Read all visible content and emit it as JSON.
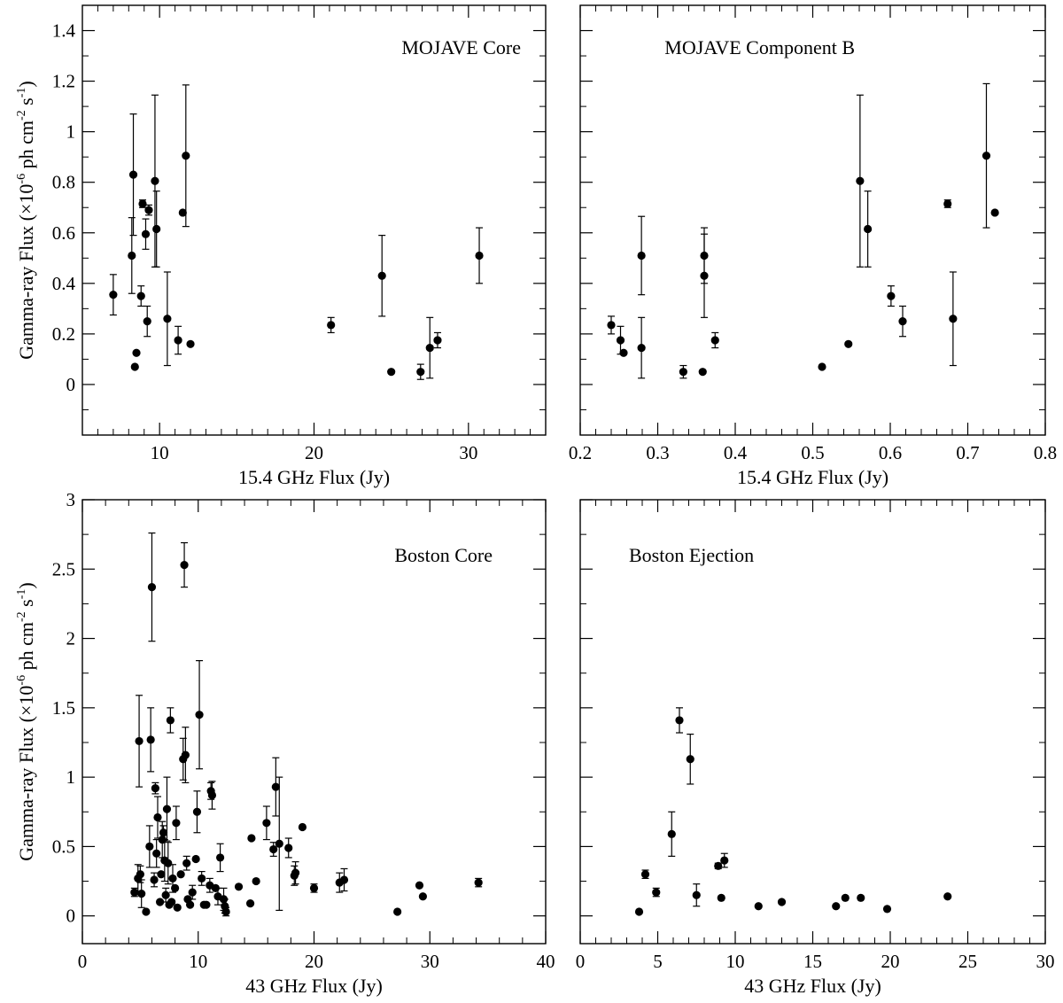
{
  "figure": {
    "y_axis_label": {
      "base": "Gamma-ray Flux (×10",
      "exp1": "-6",
      "mid": " ph cm",
      "exp2": "-2",
      "space": " s",
      "exp3": "-1",
      "end": ")"
    }
  },
  "chart_data": [
    {
      "type": "scatter",
      "title": "MOJAVE Core",
      "xlabel": "15.4 GHz Flux (Jy)",
      "ylabel": "Gamma-ray Flux (×10^-6 ph cm^-2 s^-1)",
      "xlim": [
        5,
        35
      ],
      "ylim": [
        -0.2,
        1.5
      ],
      "xticks": [
        10,
        20,
        30
      ],
      "xtick_labels": [
        "10",
        "20",
        "30"
      ],
      "xminor": 1,
      "yticks": [
        0,
        0.2,
        0.4,
        0.6,
        0.8,
        1,
        1.2,
        1.4
      ],
      "ytick_labels": [
        "0",
        "0.2",
        "0.4",
        "0.6",
        "0.8",
        "1",
        "1.2",
        "1.4"
      ],
      "yminor": 0.1,
      "show_ytick_labels": true,
      "points": [
        {
          "x": 7.0,
          "y": 0.355,
          "err": 0.08
        },
        {
          "x": 8.2,
          "y": 0.51,
          "err": 0.15
        },
        {
          "x": 8.3,
          "y": 0.83,
          "err": 0.24
        },
        {
          "x": 8.4,
          "y": 0.07,
          "err": 0
        },
        {
          "x": 8.5,
          "y": 0.125,
          "err": 0
        },
        {
          "x": 8.8,
          "y": 0.35,
          "err": 0.04
        },
        {
          "x": 8.9,
          "y": 0.715,
          "err": 0.015
        },
        {
          "x": 9.1,
          "y": 0.595,
          "err": 0.06
        },
        {
          "x": 9.2,
          "y": 0.25,
          "err": 0.06
        },
        {
          "x": 9.3,
          "y": 0.69,
          "err": 0.02
        },
        {
          "x": 9.7,
          "y": 0.805,
          "err": 0.34
        },
        {
          "x": 9.8,
          "y": 0.615,
          "err": 0.15
        },
        {
          "x": 10.5,
          "y": 0.26,
          "err": 0.185
        },
        {
          "x": 11.2,
          "y": 0.175,
          "err": 0.055
        },
        {
          "x": 11.5,
          "y": 0.68,
          "err": 0
        },
        {
          "x": 11.7,
          "y": 0.905,
          "err": 0.28
        },
        {
          "x": 12.0,
          "y": 0.16,
          "err": 0
        },
        {
          "x": 21.1,
          "y": 0.235,
          "err": 0.03
        },
        {
          "x": 24.4,
          "y": 0.43,
          "err": 0.16
        },
        {
          "x": 25.0,
          "y": 0.05,
          "err": 0
        },
        {
          "x": 26.9,
          "y": 0.05,
          "err": 0.03
        },
        {
          "x": 27.5,
          "y": 0.145,
          "err": 0.12
        },
        {
          "x": 28.0,
          "y": 0.175,
          "err": 0.03
        },
        {
          "x": 30.7,
          "y": 0.51,
          "err": 0.11
        }
      ]
    },
    {
      "type": "scatter",
      "title": "MOJAVE Component B",
      "xlabel": "15.4 GHz Flux (Jy)",
      "ylabel": "",
      "xlim": [
        0.2,
        0.8
      ],
      "ylim": [
        -0.2,
        1.5
      ],
      "xticks": [
        0.2,
        0.3,
        0.4,
        0.5,
        0.6,
        0.7,
        0.8
      ],
      "xtick_labels": [
        "0.2",
        "0.3",
        "0.4",
        "0.5",
        "0.6",
        "0.7",
        "0.8"
      ],
      "xminor": 0.02,
      "yticks": [
        0,
        0.2,
        0.4,
        0.6,
        0.8,
        1,
        1.2,
        1.4
      ],
      "ytick_labels": [],
      "yminor": 0.1,
      "show_ytick_labels": false,
      "points": [
        {
          "x": 0.24,
          "y": 0.235,
          "err": 0.035
        },
        {
          "x": 0.252,
          "y": 0.175,
          "err": 0.055
        },
        {
          "x": 0.256,
          "y": 0.125,
          "err": 0
        },
        {
          "x": 0.279,
          "y": 0.51,
          "err": 0.155
        },
        {
          "x": 0.279,
          "y": 0.145,
          "err": 0.12
        },
        {
          "x": 0.333,
          "y": 0.05,
          "err": 0.025
        },
        {
          "x": 0.358,
          "y": 0.05,
          "err": 0
        },
        {
          "x": 0.36,
          "y": 0.51,
          "err": 0.11
        },
        {
          "x": 0.36,
          "y": 0.43,
          "err": 0.165
        },
        {
          "x": 0.374,
          "y": 0.175,
          "err": 0.03
        },
        {
          "x": 0.512,
          "y": 0.07,
          "err": 0
        },
        {
          "x": 0.546,
          "y": 0.16,
          "err": 0
        },
        {
          "x": 0.561,
          "y": 0.805,
          "err": 0.34
        },
        {
          "x": 0.571,
          "y": 0.615,
          "err": 0.15
        },
        {
          "x": 0.601,
          "y": 0.35,
          "err": 0.04
        },
        {
          "x": 0.616,
          "y": 0.25,
          "err": 0.06
        },
        {
          "x": 0.674,
          "y": 0.715,
          "err": 0.015
        },
        {
          "x": 0.681,
          "y": 0.26,
          "err": 0.185
        },
        {
          "x": 0.724,
          "y": 0.905,
          "err": 0.285
        },
        {
          "x": 0.735,
          "y": 0.68,
          "err": 0
        }
      ]
    },
    {
      "type": "scatter",
      "title": "Boston Core",
      "xlabel": "43 GHz Flux (Jy)",
      "ylabel": "Gamma-ray Flux (×10^-6 ph cm^-2 s^-1)",
      "xlim": [
        0,
        40
      ],
      "ylim": [
        -0.2,
        3
      ],
      "xticks": [
        0,
        10,
        20,
        30,
        40
      ],
      "xtick_labels": [
        "0",
        "10",
        "20",
        "30",
        "40"
      ],
      "xminor": 2,
      "yticks": [
        0,
        0.5,
        1,
        1.5,
        2,
        2.5,
        3
      ],
      "ytick_labels": [
        "0",
        "0.5",
        "1",
        "1.5",
        "2",
        "2.5",
        "3"
      ],
      "yminor": 0.25,
      "show_ytick_labels": true,
      "points": [
        {
          "x": 4.5,
          "y": 0.17,
          "err": 0.03
        },
        {
          "x": 4.8,
          "y": 0.27,
          "err": 0.1
        },
        {
          "x": 4.9,
          "y": 1.26,
          "err": 0.33
        },
        {
          "x": 5.0,
          "y": 0.3,
          "err": 0.06
        },
        {
          "x": 5.1,
          "y": 0.16,
          "err": 0.1
        },
        {
          "x": 5.5,
          "y": 0.03,
          "err": 0
        },
        {
          "x": 5.8,
          "y": 0.5,
          "err": 0.15
        },
        {
          "x": 5.9,
          "y": 1.27,
          "err": 0.23
        },
        {
          "x": 6.0,
          "y": 2.37,
          "err": 0.39
        },
        {
          "x": 6.2,
          "y": 0.26,
          "err": 0.05
        },
        {
          "x": 6.3,
          "y": 0.92,
          "err": 0.04
        },
        {
          "x": 6.4,
          "y": 0.45,
          "err": 0.1
        },
        {
          "x": 6.5,
          "y": 0.71,
          "err": 0.15
        },
        {
          "x": 6.7,
          "y": 0.1,
          "err": 0
        },
        {
          "x": 6.8,
          "y": 0.3,
          "err": 0
        },
        {
          "x": 6.9,
          "y": 0.55,
          "err": 0.13
        },
        {
          "x": 7.0,
          "y": 0.6,
          "err": 0.05
        },
        {
          "x": 7.1,
          "y": 0.4,
          "err": 0.15
        },
        {
          "x": 7.2,
          "y": 0.15,
          "err": 0.05
        },
        {
          "x": 7.3,
          "y": 0.77,
          "err": 0.23
        },
        {
          "x": 7.4,
          "y": 0.38,
          "err": 0.15
        },
        {
          "x": 7.5,
          "y": 0.08,
          "err": 0
        },
        {
          "x": 7.6,
          "y": 1.41,
          "err": 0.09
        },
        {
          "x": 7.7,
          "y": 0.1,
          "err": 0
        },
        {
          "x": 7.8,
          "y": 0.27,
          "err": 0.1
        },
        {
          "x": 8.0,
          "y": 0.2,
          "err": 0
        },
        {
          "x": 8.1,
          "y": 0.67,
          "err": 0.12
        },
        {
          "x": 8.2,
          "y": 0.06,
          "err": 0
        },
        {
          "x": 8.5,
          "y": 0.3,
          "err": 0
        },
        {
          "x": 8.7,
          "y": 1.13,
          "err": 0.15
        },
        {
          "x": 8.8,
          "y": 2.53,
          "err": 0.16
        },
        {
          "x": 8.9,
          "y": 1.16,
          "err": 0.2
        },
        {
          "x": 9.0,
          "y": 0.38,
          "err": 0.05
        },
        {
          "x": 9.1,
          "y": 0.12,
          "err": 0
        },
        {
          "x": 9.3,
          "y": 0.08,
          "err": 0
        },
        {
          "x": 9.5,
          "y": 0.17,
          "err": 0.05
        },
        {
          "x": 9.8,
          "y": 0.41,
          "err": 0
        },
        {
          "x": 9.9,
          "y": 0.75,
          "err": 0.15
        },
        {
          "x": 10.1,
          "y": 1.45,
          "err": 0.39
        },
        {
          "x": 10.3,
          "y": 0.27,
          "err": 0.05
        },
        {
          "x": 10.5,
          "y": 0.08,
          "err": 0
        },
        {
          "x": 10.7,
          "y": 0.08,
          "err": 0
        },
        {
          "x": 11.0,
          "y": 0.22,
          "err": 0.05
        },
        {
          "x": 11.1,
          "y": 0.9,
          "err": 0.06
        },
        {
          "x": 11.2,
          "y": 0.87,
          "err": 0.1
        },
        {
          "x": 11.5,
          "y": 0.2,
          "err": 0
        },
        {
          "x": 11.7,
          "y": 0.14,
          "err": 0.06
        },
        {
          "x": 11.9,
          "y": 0.42,
          "err": 0.1
        },
        {
          "x": 12.2,
          "y": 0.12,
          "err": 0.08
        },
        {
          "x": 12.3,
          "y": 0.07,
          "err": 0.05
        },
        {
          "x": 12.4,
          "y": 0.03,
          "err": 0.03
        },
        {
          "x": 13.5,
          "y": 0.21,
          "err": 0
        },
        {
          "x": 14.5,
          "y": 0.09,
          "err": 0
        },
        {
          "x": 14.6,
          "y": 0.56,
          "err": 0
        },
        {
          "x": 15.0,
          "y": 0.25,
          "err": 0
        },
        {
          "x": 15.9,
          "y": 0.67,
          "err": 0.12
        },
        {
          "x": 16.5,
          "y": 0.48,
          "err": 0.05
        },
        {
          "x": 16.7,
          "y": 0.93,
          "err": 0.21
        },
        {
          "x": 17.0,
          "y": 0.52,
          "err": 0.48
        },
        {
          "x": 17.8,
          "y": 0.49,
          "err": 0.07
        },
        {
          "x": 18.3,
          "y": 0.29,
          "err": 0.07
        },
        {
          "x": 18.4,
          "y": 0.31,
          "err": 0.08
        },
        {
          "x": 19.0,
          "y": 0.64,
          "err": 0
        },
        {
          "x": 20.0,
          "y": 0.2,
          "err": 0.03
        },
        {
          "x": 22.2,
          "y": 0.24,
          "err": 0.07
        },
        {
          "x": 22.6,
          "y": 0.26,
          "err": 0.08
        },
        {
          "x": 27.2,
          "y": 0.03,
          "err": 0
        },
        {
          "x": 29.1,
          "y": 0.22,
          "err": 0
        },
        {
          "x": 29.4,
          "y": 0.14,
          "err": 0
        },
        {
          "x": 34.2,
          "y": 0.24,
          "err": 0.03
        }
      ]
    },
    {
      "type": "scatter",
      "title": "Boston Ejection",
      "xlabel": "43 GHz Flux (Jy)",
      "ylabel": "",
      "xlim": [
        0,
        30
      ],
      "ylim": [
        -0.2,
        3
      ],
      "xticks": [
        0,
        5,
        10,
        15,
        20,
        25,
        30
      ],
      "xtick_labels": [
        "0",
        "5",
        "10",
        "15",
        "20",
        "25",
        "30"
      ],
      "xminor": 1,
      "yticks": [
        0,
        0.5,
        1,
        1.5,
        2,
        2.5,
        3
      ],
      "ytick_labels": [],
      "yminor": 0.25,
      "show_ytick_labels": false,
      "points": [
        {
          "x": 3.8,
          "y": 0.03,
          "err": 0
        },
        {
          "x": 4.2,
          "y": 0.3,
          "err": 0.03
        },
        {
          "x": 4.9,
          "y": 0.17,
          "err": 0.03
        },
        {
          "x": 5.9,
          "y": 0.59,
          "err": 0.16
        },
        {
          "x": 6.4,
          "y": 1.41,
          "err": 0.09
        },
        {
          "x": 7.1,
          "y": 1.13,
          "err": 0.18
        },
        {
          "x": 7.5,
          "y": 0.15,
          "err": 0.08
        },
        {
          "x": 8.9,
          "y": 0.36,
          "err": 0.02
        },
        {
          "x": 9.1,
          "y": 0.13,
          "err": 0
        },
        {
          "x": 9.3,
          "y": 0.4,
          "err": 0.05
        },
        {
          "x": 11.5,
          "y": 0.07,
          "err": 0
        },
        {
          "x": 13.0,
          "y": 0.1,
          "err": 0
        },
        {
          "x": 16.5,
          "y": 0.07,
          "err": 0
        },
        {
          "x": 17.1,
          "y": 0.13,
          "err": 0
        },
        {
          "x": 18.1,
          "y": 0.13,
          "err": 0
        },
        {
          "x": 19.8,
          "y": 0.05,
          "err": 0
        },
        {
          "x": 23.7,
          "y": 0.14,
          "err": 0
        }
      ]
    }
  ]
}
